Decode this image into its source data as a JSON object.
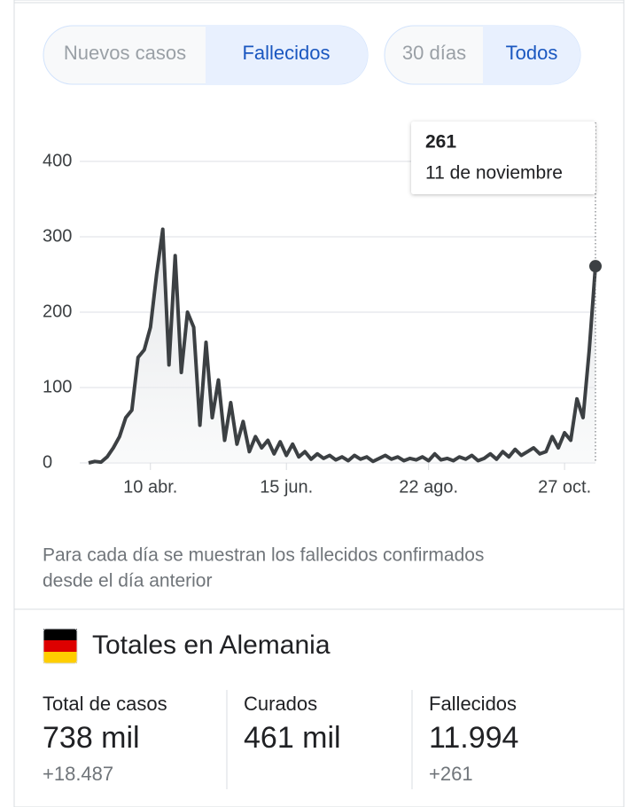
{
  "tabs": [
    "Nuevos casos",
    "Fallecidos"
  ],
  "range_tabs": [
    "30 días",
    "Todos"
  ],
  "chart_data": {
    "type": "line",
    "color": "#3c4043",
    "categories": [
      null,
      null,
      null,
      null,
      null,
      null,
      null,
      null,
      null,
      null,
      "10 abr.",
      null,
      null,
      null,
      null,
      null,
      null,
      null,
      null,
      null,
      null,
      null,
      null,
      null,
      null,
      null,
      null,
      null,
      null,
      null,
      null,
      null,
      "15 jun.",
      null,
      null,
      null,
      null,
      null,
      null,
      null,
      null,
      null,
      null,
      null,
      null,
      null,
      null,
      null,
      null,
      null,
      null,
      null,
      null,
      null,
      null,
      "22 ago.",
      null,
      null,
      null,
      null,
      null,
      null,
      null,
      null,
      null,
      null,
      null,
      null,
      null,
      null,
      null,
      null,
      null,
      null,
      null,
      null,
      null,
      "27 oct.",
      null,
      null,
      null,
      null,
      null
    ],
    "values": [
      0,
      2,
      1,
      8,
      20,
      35,
      60,
      70,
      140,
      150,
      180,
      250,
      310,
      130,
      275,
      120,
      200,
      180,
      50,
      160,
      60,
      110,
      30,
      80,
      25,
      55,
      15,
      35,
      20,
      30,
      12,
      28,
      10,
      25,
      8,
      15,
      5,
      12,
      6,
      10,
      4,
      8,
      3,
      10,
      5,
      8,
      2,
      6,
      10,
      5,
      8,
      3,
      6,
      4,
      8,
      3,
      12,
      4,
      6,
      3,
      8,
      5,
      10,
      3,
      6,
      12,
      5,
      15,
      8,
      18,
      10,
      15,
      20,
      12,
      15,
      35,
      20,
      40,
      30,
      85,
      60,
      150,
      261
    ],
    "ylim": [
      0,
      400
    ],
    "yticks": [
      0,
      100,
      200,
      300,
      400
    ],
    "grid": true,
    "tooltip_date": "11 de noviembre"
  },
  "caption": [
    "Para cada día se muestran los fallecidos confirmados",
    "desde el día anterior"
  ],
  "totals": {
    "title": "Totales en Alemania",
    "items": [
      {
        "label": "Total de casos",
        "value": "738 mil",
        "change": "+18.487"
      },
      {
        "label": "Curados",
        "value": "461 mil"
      },
      {
        "label": "Fallecidos",
        "value": "11.994",
        "change": "+261"
      }
    ]
  }
}
